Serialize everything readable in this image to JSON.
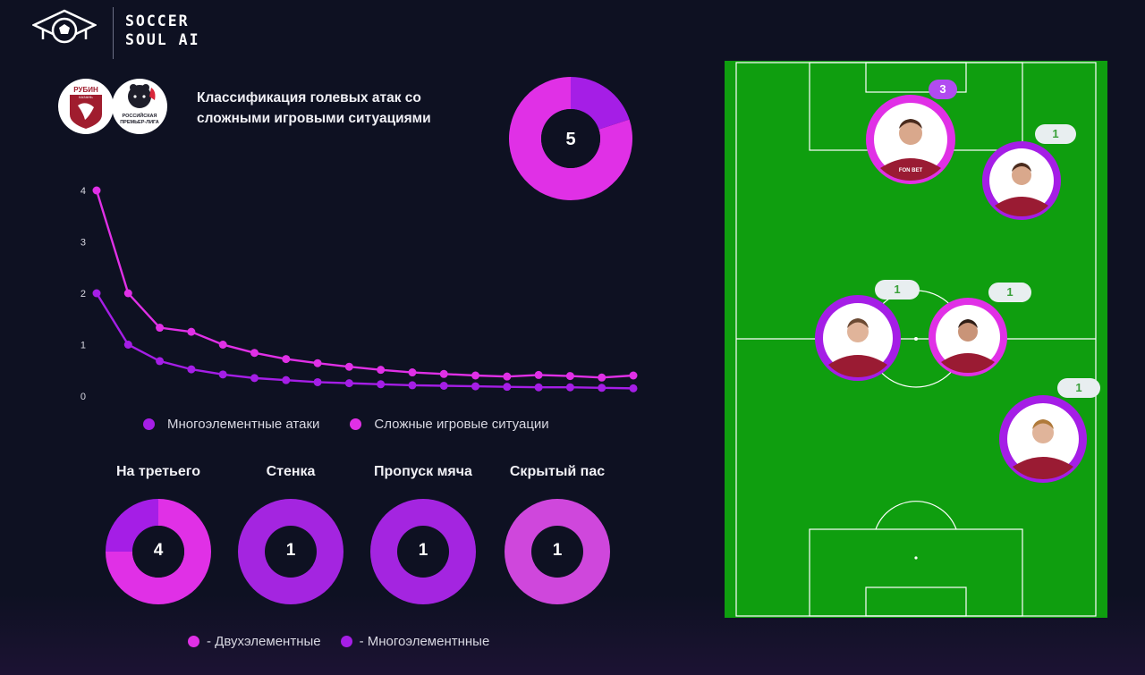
{
  "brand": {
    "line1": "SOCCER",
    "line2": "SOUL AI"
  },
  "clubs": {
    "club": "РУБИН",
    "club_sub": "КАЗАНЬ",
    "league_line1": "РОССИЙСКАЯ",
    "league_line2": "ПРЕМЬЕР-ЛИГА"
  },
  "title": "Классификация голевых атак со сложными игровыми ситуациями",
  "total": {
    "value": "5",
    "segments": [
      {
        "name": "Многоэлементные",
        "value": 1
      },
      {
        "name": "Двухэлементные",
        "value": 4
      }
    ]
  },
  "colors": {
    "multi": "#a51ee6",
    "double": "#e030e6",
    "pitch": "#0f9e0f",
    "bg": "#0e1122"
  },
  "line_legend": [
    "Многоэлементные атаки",
    "Сложные игровые ситуации"
  ],
  "chart_data": {
    "type": "line",
    "x": [
      1,
      2,
      3,
      4,
      5,
      6,
      7,
      8,
      9,
      10,
      11,
      12,
      13,
      14,
      15,
      16,
      17,
      18
    ],
    "ylim": [
      0,
      4
    ],
    "yticks": [
      "0",
      "1",
      "2",
      "3",
      "4"
    ],
    "series": [
      {
        "name": "Многоэлементные атаки",
        "color": "#a51ee6",
        "values": [
          2.0,
          1.0,
          0.68,
          0.52,
          0.42,
          0.35,
          0.31,
          0.27,
          0.25,
          0.23,
          0.21,
          0.2,
          0.19,
          0.18,
          0.17,
          0.17,
          0.16,
          0.15
        ]
      },
      {
        "name": "Сложные игровые ситуации",
        "color": "#e030e6",
        "values": [
          4.0,
          2.0,
          1.33,
          1.25,
          1.0,
          0.84,
          0.72,
          0.64,
          0.57,
          0.51,
          0.46,
          0.43,
          0.4,
          0.38,
          0.41,
          0.39,
          0.36,
          0.4
        ]
      }
    ]
  },
  "categories": [
    {
      "label": "На третьего",
      "value": "4",
      "double": 3,
      "multi": 1
    },
    {
      "label": "Стенка",
      "value": "1",
      "double": 0,
      "multi": 1
    },
    {
      "label": "Пропуск мяча",
      "value": "1",
      "double": 0,
      "multi": 1
    },
    {
      "label": "Скрытый пас",
      "value": "1",
      "double": 1,
      "multi": 0
    }
  ],
  "type_legend": [
    "- Двухэлементные",
    "- Многоэлементнные"
  ],
  "players": [
    {
      "badge": "3",
      "badge_style": "dark"
    },
    {
      "badge": "1",
      "badge_style": "light"
    },
    {
      "badge": "1",
      "badge_style": "light"
    },
    {
      "badge": "1",
      "badge_style": "light"
    },
    {
      "badge": "1",
      "badge_style": "light"
    }
  ],
  "shirt": {
    "sponsor": "FON BET"
  }
}
